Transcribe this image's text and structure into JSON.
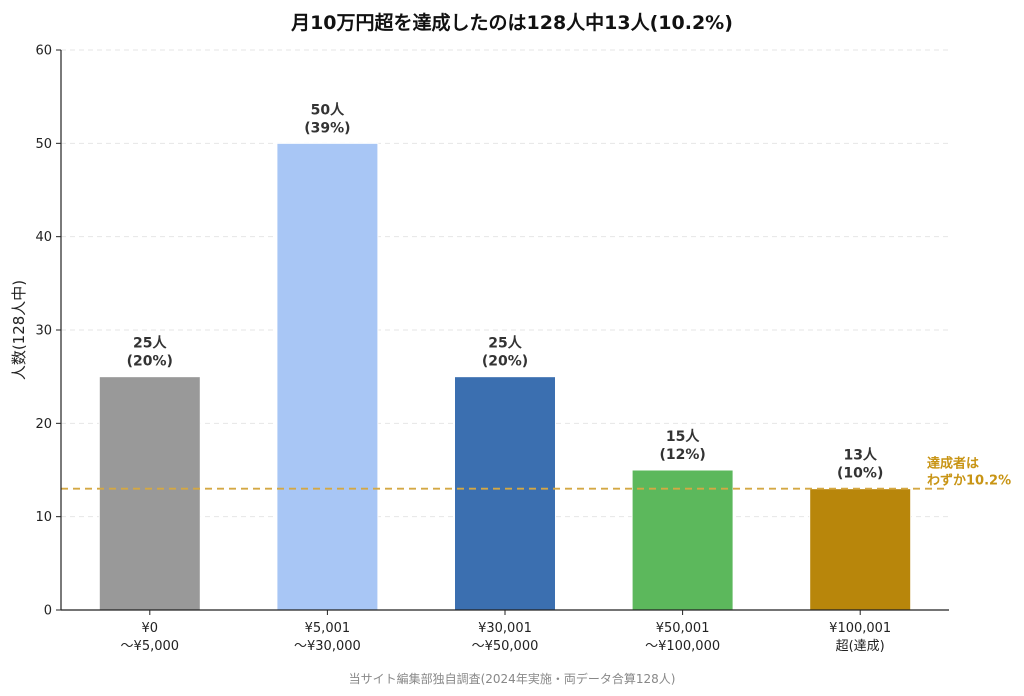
{
  "title": "月10万円超を達成したのは128人中13人(10.2%)",
  "source": "当サイト編集部独自調査(2024年実施・両データ合算128人)",
  "chart_data": {
    "type": "bar",
    "title": "月10万円超を達成したのは128人中13人(10.2%)",
    "ylabel": "人数(128人中)",
    "xlabel": "",
    "ylim": [
      0,
      60
    ],
    "yticks": [
      0,
      10,
      20,
      30,
      40,
      50,
      60
    ],
    "grid": "horizontal dashed",
    "categories": [
      [
        "¥0",
        "〜¥5,000"
      ],
      [
        "¥5,001",
        "〜¥30,000"
      ],
      [
        "¥30,001",
        "〜¥50,000"
      ],
      [
        "¥50,001",
        "〜¥100,000"
      ],
      [
        "¥100,001",
        "超(達成)"
      ]
    ],
    "values": [
      25,
      50,
      25,
      15,
      13
    ],
    "bar_labels": [
      [
        "25人",
        "(20%)"
      ],
      [
        "50人",
        "(39%)"
      ],
      [
        "25人",
        "(20%)"
      ],
      [
        "15人",
        "(12%)"
      ],
      [
        "13人",
        "(10%)"
      ]
    ],
    "colors": [
      "#999999",
      "#a8c6f5",
      "#3b6fb0",
      "#5cb85c",
      "#b8860b"
    ],
    "reference_line": {
      "value": 13,
      "color": "#d4a843",
      "label": [
        "達成者は",
        "わずか10.2%"
      ]
    }
  }
}
